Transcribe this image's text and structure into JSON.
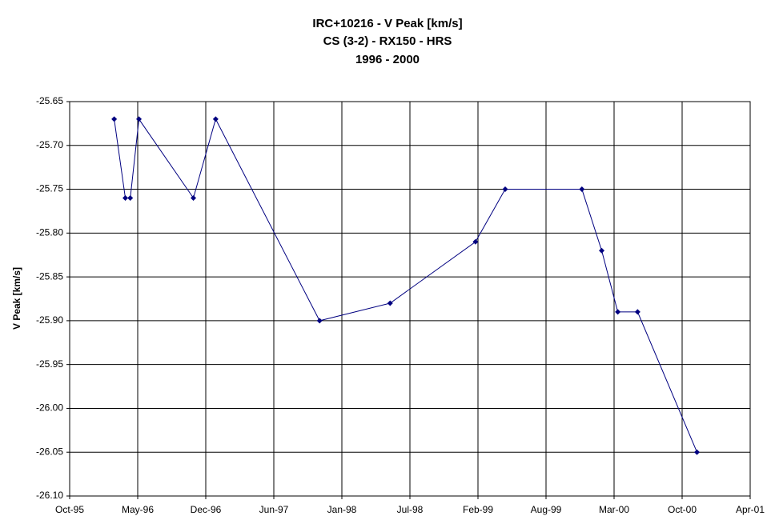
{
  "chart_data": {
    "type": "line",
    "title": [
      "IRC+10216 - V Peak [km/s]",
      "CS (3-2) - RX150 - HRS",
      "1996 - 2000"
    ],
    "y_label": "V Peak [km/s]",
    "x": [
      1996.11,
      1996.2,
      1996.24,
      1996.31,
      1996.75,
      1996.93,
      1997.77,
      1998.34,
      1999.03,
      1999.27,
      1999.89,
      2000.05,
      2000.18,
      2000.34,
      2000.82
    ],
    "series": [
      {
        "name": "V Peak",
        "color": "#000080",
        "values": [
          -25.67,
          -25.76,
          -25.76,
          -25.67,
          -25.76,
          -25.67,
          -25.9,
          -25.88,
          -25.81,
          -25.75,
          -25.75,
          -25.82,
          -25.89,
          -25.89,
          -26.05
        ]
      }
    ],
    "xlim": [
      1995.75,
      2001.25
    ],
    "xticks": [
      {
        "value": 1995.75,
        "label": "Oct-95"
      },
      {
        "value": 1996.3,
        "label": "May-96"
      },
      {
        "value": 1996.85,
        "label": "Dec-96"
      },
      {
        "value": 1997.4,
        "label": "Jun-97"
      },
      {
        "value": 1997.95,
        "label": "Jan-98"
      },
      {
        "value": 1998.5,
        "label": "Jul-98"
      },
      {
        "value": 1999.05,
        "label": "Feb-99"
      },
      {
        "value": 1999.6,
        "label": "Aug-99"
      },
      {
        "value": 2000.15,
        "label": "Mar-00"
      },
      {
        "value": 2000.7,
        "label": "Oct-00"
      },
      {
        "value": 2001.25,
        "label": "Apr-01"
      }
    ],
    "ylim": [
      -26.1,
      -25.65
    ],
    "yticks": [
      -25.65,
      {
        "value": -25.7,
        "label": "-25.70"
      },
      -25.75,
      {
        "value": -25.8,
        "label": "-25.80"
      },
      -25.85,
      {
        "value": -25.9,
        "label": "-25.90"
      },
      -25.95,
      {
        "value": -26.0,
        "label": "-26.00"
      },
      -26.05,
      {
        "value": -26.1,
        "label": "-26.10"
      }
    ],
    "grid": true
  }
}
